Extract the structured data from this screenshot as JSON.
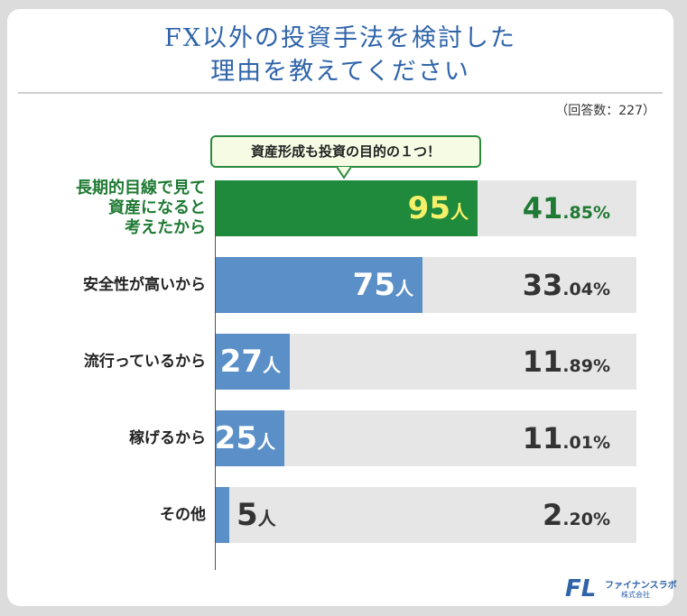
{
  "title_line1": "FX以外の投資手法を検討した",
  "title_line2": "理由を教えてください",
  "response_count": "（回答数：227）",
  "callout": "資産形成も投資の目的の１つ！",
  "colors": {
    "highlight_bar": "#1f8a3b",
    "normal_bar": "#5b8fc7",
    "track": "#e6e6e6",
    "highlight_count_text": "#f5f06a",
    "normal_count_text": "#ffffff",
    "outside_count_text": "#333333",
    "highlight_pct": "#1f7a34"
  },
  "chart_data": {
    "type": "bar",
    "orientation": "horizontal",
    "total": 227,
    "categories": [
      [
        "長期的目線で見て",
        "資産になると",
        "考えたから"
      ],
      [
        "安全性が高いから"
      ],
      [
        "流行っているから"
      ],
      [
        "稼げるから"
      ],
      [
        "その他"
      ]
    ],
    "counts": [
      95,
      75,
      27,
      25,
      5
    ],
    "count_unit": "人",
    "percent_int": [
      "41",
      "33",
      "11",
      "11",
      "2"
    ],
    "percent_dec": [
      ".85%",
      ".04%",
      ".89%",
      ".01%",
      ".20%"
    ],
    "highlight_index": 0
  },
  "logo": {
    "mark": "FL",
    "name": "ファイナンスラボ",
    "company": "株式会社"
  }
}
